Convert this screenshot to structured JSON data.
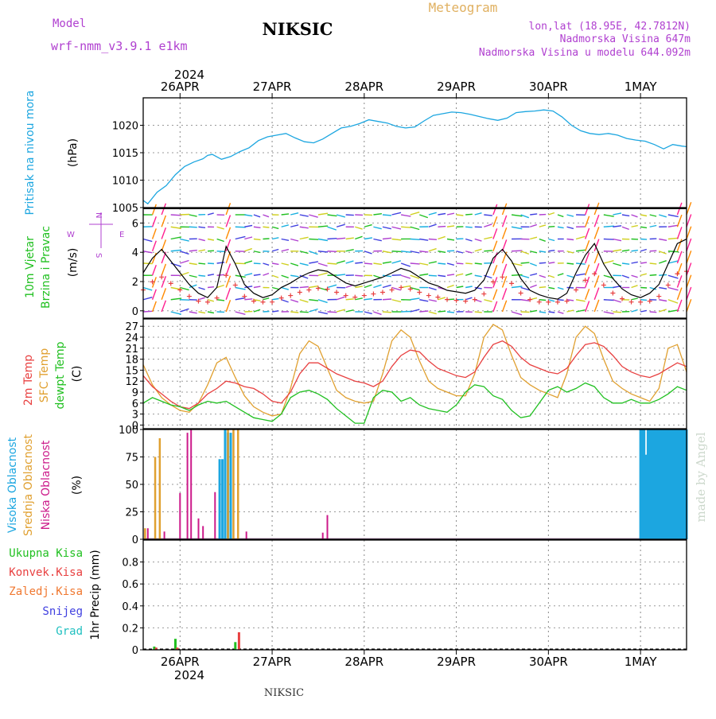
{
  "header": {
    "model_label": "Model",
    "model_name": "wrf-nmm_v3.9.1  e1km",
    "station": "NIKSIC",
    "product": "Meteogram",
    "lonlat": "lon,lat (18.95E, 42.7812N)",
    "elevation": "Nadmorska Visina 647m",
    "model_elevation": "Nadmorska Visina u modelu 644.092m",
    "footer_station": "NIKSIC",
    "credit": "made by Angel"
  },
  "colors": {
    "pressure": "#1ca6e0",
    "wind_label": "#21c021",
    "temp_2m": "#e84040",
    "temp_sfc": "#e0a030",
    "dewpoint": "#21c021",
    "cloud_high": "#1ca6e0",
    "cloud_mid": "#e0a030",
    "cloud_low": "#cc1a8a",
    "header_purple": "#b040d0",
    "header_orange": "#e0b060",
    "precip_total": "#21c021",
    "precip_conv": "#e84040",
    "precip_frz": "#f07830",
    "snow": "#4040e0",
    "graupel": "#20c0c0"
  },
  "time_axis": {
    "top_year": "2024",
    "bottom_year": "2024",
    "days": [
      "26APR",
      "27APR",
      "28APR",
      "29APR",
      "30APR",
      "1MAY"
    ]
  },
  "panels": {
    "pressure": {
      "label": "Pritisak na nivou mora",
      "unit": "(hPa)"
    },
    "wind": {
      "label1": "10m Vjetar",
      "label2": "Brzina i Pravac",
      "unit": "(m/s)",
      "compass": [
        "N",
        "W",
        "E",
        "S"
      ]
    },
    "temp": {
      "label1": "2m Temp",
      "label2": "SFC Temp",
      "label3": "dewpt Temp",
      "unit": "(C)"
    },
    "cloud": {
      "label1": "Visoka Oblacnost",
      "label2": "Srednja Oblacnost",
      "label3": "Niska Oblacnost",
      "unit": "(%)"
    },
    "precip": {
      "labels": [
        "Ukupna Kisa",
        "Konvek.Kisa",
        "Zaledj.Kisa",
        "Snijeg",
        "Grad"
      ],
      "unit": "1hr Precip (mm)"
    }
  },
  "chart_data": [
    {
      "type": "line",
      "title": "Pritisak na nivou mora",
      "ylabel": "(hPa)",
      "ylim": [
        1005,
        1025
      ],
      "yticks": [
        1005,
        1010,
        1015,
        1020
      ],
      "xlim_days": [
        25.6,
        31.5
      ],
      "x_unit": "day of April 2024",
      "series": [
        {
          "name": "Pritisak na nivou mora",
          "x": [
            25.6,
            25.65,
            25.75,
            25.85,
            25.95,
            26.05,
            26.15,
            26.25,
            26.3,
            26.35,
            26.45,
            26.55,
            26.65,
            26.75,
            26.85,
            26.95,
            27.05,
            27.15,
            27.25,
            27.35,
            27.45,
            27.55,
            27.65,
            27.75,
            27.85,
            27.95,
            28.05,
            28.15,
            28.25,
            28.35,
            28.45,
            28.55,
            28.65,
            28.75,
            28.85,
            28.95,
            29.05,
            29.15,
            29.25,
            29.35,
            29.45,
            29.55,
            29.65,
            29.75,
            29.85,
            29.95,
            30.05,
            30.15,
            30.25,
            30.35,
            30.45,
            30.55,
            30.65,
            30.75,
            30.85,
            30.95,
            31.05,
            31.15,
            31.25,
            31.35,
            31.45,
            31.5
          ],
          "values": [
            1006.3,
            1005.7,
            1007.8,
            1009,
            1011,
            1012.5,
            1013.3,
            1013.9,
            1014.5,
            1014.7,
            1013.8,
            1014.3,
            1015.2,
            1015.9,
            1017.2,
            1017.9,
            1018.2,
            1018.5,
            1017.7,
            1017,
            1016.8,
            1017.5,
            1018.5,
            1019.5,
            1019.8,
            1020.3,
            1021,
            1020.7,
            1020.4,
            1019.8,
            1019.5,
            1019.7,
            1020.8,
            1021.8,
            1022.1,
            1022.4,
            1022.3,
            1022,
            1021.6,
            1021.2,
            1020.9,
            1021.3,
            1022.3,
            1022.5,
            1022.6,
            1022.8,
            1022.6,
            1021.5,
            1020,
            1019,
            1018.5,
            1018.3,
            1018.5,
            1018.2,
            1017.6,
            1017.3,
            1017.1,
            1016.5,
            1015.7,
            1016.5,
            1016.2,
            1016.1
          ]
        }
      ]
    },
    {
      "type": "line",
      "title": "10m Vjetar Brzina i Pravac",
      "ylabel": "(m/s)",
      "ylim": [
        -0.5,
        7
      ],
      "yticks": [
        0,
        2,
        4,
        6
      ],
      "series": [
        {
          "name": "10m Vjetar",
          "x": [
            25.6,
            25.7,
            25.8,
            25.9,
            26.0,
            26.1,
            26.2,
            26.3,
            26.4,
            26.5,
            26.6,
            26.7,
            26.8,
            26.9,
            27.0,
            27.1,
            27.2,
            27.3,
            27.4,
            27.5,
            27.6,
            27.7,
            27.8,
            27.9,
            28.0,
            28.1,
            28.2,
            28.3,
            28.4,
            28.5,
            28.6,
            28.7,
            28.8,
            28.9,
            29.0,
            29.1,
            29.2,
            29.3,
            29.4,
            29.5,
            29.6,
            29.7,
            29.8,
            29.9,
            30.0,
            30.1,
            30.2,
            30.3,
            30.4,
            30.5,
            30.6,
            30.7,
            30.8,
            30.9,
            31.0,
            31.1,
            31.2,
            31.3,
            31.4,
            31.5
          ],
          "values": [
            2.6,
            3.6,
            4.2,
            3.4,
            2.6,
            1.8,
            1.2,
            0.9,
            1.6,
            4.4,
            3.2,
            1.8,
            1.2,
            0.9,
            1.1,
            1.6,
            1.9,
            2.3,
            2.6,
            2.8,
            2.7,
            2.3,
            1.9,
            1.7,
            1.9,
            2.1,
            2.3,
            2.6,
            2.9,
            2.7,
            2.3,
            1.9,
            1.7,
            1.4,
            1.3,
            1.2,
            1.4,
            2.1,
            3.6,
            4.2,
            3.4,
            2.2,
            1.4,
            1.1,
            0.9,
            0.8,
            1.2,
            2.6,
            3.8,
            4.6,
            3.2,
            2.2,
            1.5,
            1.1,
            0.9,
            1.2,
            1.8,
            3.2,
            4.6,
            4.9
          ]
        }
      ]
    },
    {
      "type": "line",
      "title": "2m Temp / SFC Temp / dewpt Temp",
      "ylabel": "(C)",
      "ylim": [
        -1,
        29
      ],
      "yticks": [
        0,
        3,
        6,
        9,
        12,
        15,
        18,
        21,
        24,
        27
      ],
      "series": [
        {
          "name": "2m Temp",
          "x": [
            25.6,
            25.7,
            25.8,
            25.9,
            26.0,
            26.1,
            26.2,
            26.3,
            26.4,
            26.5,
            26.6,
            26.7,
            26.8,
            26.9,
            27.0,
            27.1,
            27.2,
            27.3,
            27.4,
            27.5,
            27.6,
            27.7,
            27.8,
            27.9,
            28.0,
            28.1,
            28.2,
            28.3,
            28.4,
            28.5,
            28.6,
            28.7,
            28.8,
            28.9,
            29.0,
            29.1,
            29.2,
            29.3,
            29.4,
            29.5,
            29.6,
            29.7,
            29.8,
            29.9,
            30.0,
            30.1,
            30.2,
            30.3,
            30.4,
            30.5,
            30.6,
            30.7,
            30.8,
            30.9,
            31.0,
            31.1,
            31.2,
            31.3,
            31.4,
            31.5
          ],
          "values": [
            13.5,
            10.5,
            8.5,
            6.5,
            5,
            4.5,
            6,
            8.5,
            10,
            12,
            11.5,
            10.5,
            10,
            8.5,
            6.5,
            6,
            9,
            14,
            17,
            17,
            15.5,
            14,
            13,
            12,
            11.5,
            10.5,
            12,
            16,
            19,
            20.5,
            20,
            17.5,
            15.5,
            14.5,
            13.5,
            13,
            14.5,
            18.5,
            22,
            23,
            21.5,
            18.5,
            16.5,
            15.5,
            14.5,
            14,
            15.5,
            19,
            22,
            22.5,
            21.5,
            19,
            16,
            14.5,
            13.5,
            13,
            14,
            15.5,
            17,
            16
          ]
        },
        {
          "name": "SFC Temp",
          "x": [
            25.6,
            25.7,
            25.8,
            25.9,
            26.0,
            26.1,
            26.2,
            26.3,
            26.4,
            26.5,
            26.6,
            26.7,
            26.8,
            26.9,
            27.0,
            27.1,
            27.2,
            27.3,
            27.4,
            27.5,
            27.6,
            27.7,
            27.8,
            27.9,
            28.0,
            28.1,
            28.2,
            28.3,
            28.4,
            28.5,
            28.6,
            28.7,
            28.8,
            28.9,
            29.0,
            29.1,
            29.2,
            29.3,
            29.4,
            29.5,
            29.6,
            29.7,
            29.8,
            29.9,
            30.0,
            30.1,
            30.2,
            30.3,
            30.4,
            30.5,
            30.6,
            30.7,
            30.8,
            30.9,
            31.0,
            31.1,
            31.2,
            31.3,
            31.4,
            31.5
          ],
          "values": [
            16.5,
            11,
            7.5,
            5.5,
            4,
            3.5,
            6,
            11,
            17,
            18.5,
            13,
            8,
            5,
            3.5,
            2.5,
            3,
            10,
            19.5,
            23,
            21.5,
            15.5,
            9.5,
            7.5,
            6.5,
            6,
            6.5,
            14,
            23,
            26,
            24,
            17.5,
            12,
            10,
            9,
            8,
            8,
            14,
            24,
            27.5,
            26,
            19,
            13,
            11,
            9.5,
            8.5,
            7.5,
            14,
            24,
            27,
            25,
            18,
            12,
            10,
            8.5,
            7.5,
            6.5,
            10,
            21,
            22,
            14.5
          ]
        },
        {
          "name": "dewpt Temp",
          "x": [
            25.6,
            25.7,
            25.8,
            25.9,
            26.0,
            26.1,
            26.2,
            26.3,
            26.4,
            26.5,
            26.6,
            26.7,
            26.8,
            26.9,
            27.0,
            27.1,
            27.2,
            27.3,
            27.4,
            27.5,
            27.6,
            27.7,
            27.8,
            27.9,
            28.0,
            28.1,
            28.2,
            28.3,
            28.4,
            28.5,
            28.6,
            28.7,
            28.8,
            28.9,
            29.0,
            29.1,
            29.2,
            29.3,
            29.4,
            29.5,
            29.6,
            29.7,
            29.8,
            29.9,
            30.0,
            30.1,
            30.2,
            30.3,
            30.4,
            30.5,
            30.6,
            30.7,
            30.8,
            30.9,
            31.0,
            31.1,
            31.2,
            31.3,
            31.4,
            31.5
          ],
          "values": [
            6,
            7.5,
            6.5,
            5.5,
            5,
            4,
            5.5,
            6.5,
            6,
            6.5,
            5,
            3.5,
            2,
            1.5,
            1,
            3,
            7.5,
            9,
            9.5,
            8.5,
            7,
            4.5,
            2.5,
            0.5,
            0.5,
            7.5,
            9.5,
            9,
            6.5,
            7.5,
            5.5,
            4.5,
            4,
            3.5,
            5.5,
            9,
            11,
            10.5,
            8,
            7,
            4,
            2,
            2.5,
            6,
            9.5,
            10.5,
            9,
            10,
            11.5,
            10.5,
            7.5,
            6,
            6,
            7,
            6,
            6,
            7,
            8.5,
            10.5,
            9.5
          ]
        }
      ]
    },
    {
      "type": "bar",
      "title": "Oblacnost",
      "ylabel": "(%)",
      "ylim": [
        0,
        100
      ],
      "yticks": [
        0,
        25,
        50,
        75,
        100
      ],
      "series": [
        {
          "name": "Visoka Oblacnost",
          "x": [
            26.43,
            26.46,
            26.49,
            26.52,
            26.55,
            31.0,
            31.02,
            31.04,
            31.06,
            31.08,
            31.1,
            31.12,
            31.14,
            31.16,
            31.18,
            31.2,
            31.22,
            31.24,
            31.26,
            31.28,
            31.3,
            31.32,
            31.34,
            31.36,
            31.38,
            31.4,
            31.42,
            31.44,
            31.46,
            31.48,
            31.5
          ],
          "values": [
            73,
            73,
            100,
            97,
            97,
            100,
            100,
            100,
            77,
            100,
            100,
            100,
            100,
            100,
            100,
            100,
            100,
            100,
            100,
            100,
            100,
            100,
            100,
            100,
            100,
            100,
            100,
            100,
            100,
            100,
            100
          ]
        },
        {
          "name": "Srednja Oblacnost",
          "x": [
            25.62,
            25.73,
            25.78,
            26.52,
            26.58,
            26.63
          ],
          "values": [
            10,
            75,
            92,
            100,
            100,
            100
          ]
        },
        {
          "name": "Niska Oblacnost",
          "x": [
            25.65,
            25.83,
            26.0,
            26.08,
            26.12,
            26.2,
            26.25,
            26.38,
            26.72,
            27.55,
            27.6
          ],
          "values": [
            10,
            7,
            42,
            97,
            100,
            19,
            12,
            43,
            7,
            6,
            22
          ]
        }
      ]
    },
    {
      "type": "bar",
      "title": "1hr Precip",
      "ylabel": "1hr Precip (mm)",
      "ylim": [
        0,
        1.0
      ],
      "yticks": [
        0,
        0.2,
        0.4,
        0.6,
        0.8
      ],
      "series": [
        {
          "name": "Ukupna Kisa",
          "x": [
            25.72,
            25.95,
            26.6
          ],
          "values": [
            0.03,
            0.1,
            0.07
          ]
        },
        {
          "name": "Konvek.Kisa",
          "x": [
            25.74,
            25.97,
            26.64
          ],
          "values": [
            0.02,
            0.02,
            0.16
          ]
        },
        {
          "name": "Zaledj.Kisa",
          "x": [],
          "values": []
        },
        {
          "name": "Snijeg",
          "x": [],
          "values": []
        },
        {
          "name": "Grad",
          "x": [],
          "values": []
        }
      ]
    }
  ]
}
